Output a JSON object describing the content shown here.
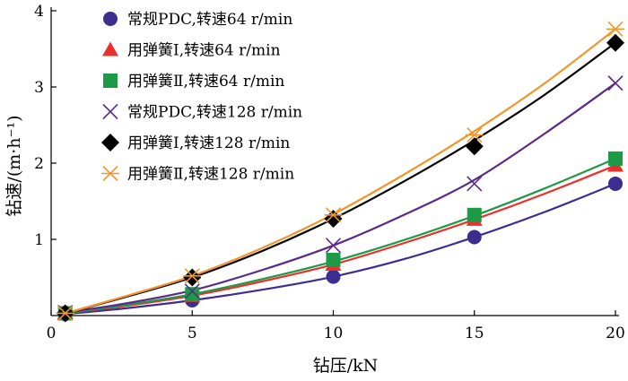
{
  "chart_data": {
    "type": "line",
    "title": "",
    "xlabel": "钻压/kN",
    "ylabel": "钻速/(m·h⁻¹)",
    "xlim": [
      0,
      20
    ],
    "ylim": [
      0,
      4
    ],
    "x_ticks": [
      "0",
      "5",
      "10",
      "15",
      "20"
    ],
    "y_ticks": [
      "1",
      "2",
      "3",
      "4"
    ],
    "grid": false,
    "legend_position": "top-left",
    "series": [
      {
        "name": "常规PDC,转速64 r/min",
        "marker": "circle",
        "color": "#3d2d8e",
        "x": [
          0.5,
          5,
          10,
          15,
          20
        ],
        "y": [
          0.02,
          0.2,
          0.51,
          1.03,
          1.73
        ],
        "fit": [
          [
            0.5,
            0.02
          ],
          [
            2.5,
            0.09
          ],
          [
            5,
            0.2
          ],
          [
            7.5,
            0.34
          ],
          [
            10,
            0.51
          ],
          [
            12.5,
            0.74
          ],
          [
            15,
            1.03
          ],
          [
            17.5,
            1.36
          ],
          [
            20,
            1.73
          ]
        ]
      },
      {
        "name": "用弹簧Ⅰ,转速64 r/min",
        "marker": "triangle",
        "color": "#e8312a",
        "x": [
          0.5,
          5,
          10,
          15,
          20
        ],
        "y": [
          0.03,
          0.26,
          0.67,
          1.26,
          1.97
        ],
        "fit": [
          [
            0.5,
            0.03
          ],
          [
            2.5,
            0.12
          ],
          [
            5,
            0.26
          ],
          [
            7.5,
            0.45
          ],
          [
            10,
            0.67
          ],
          [
            12.5,
            0.95
          ],
          [
            15,
            1.26
          ],
          [
            17.5,
            1.6
          ],
          [
            20,
            1.97
          ]
        ]
      },
      {
        "name": "用弹簧Ⅱ,转速64 r/min",
        "marker": "square",
        "color": "#1e9a47",
        "x": [
          0.5,
          5,
          10,
          15,
          20
        ],
        "y": [
          0.03,
          0.28,
          0.73,
          1.32,
          2.06
        ],
        "fit": [
          [
            0.5,
            0.03
          ],
          [
            2.5,
            0.13
          ],
          [
            5,
            0.28
          ],
          [
            7.5,
            0.48
          ],
          [
            10,
            0.71
          ],
          [
            12.5,
            0.99
          ],
          [
            15,
            1.31
          ],
          [
            17.5,
            1.67
          ],
          [
            20,
            2.06
          ]
        ]
      },
      {
        "name": "常规PDC,转速128 r/min",
        "marker": "x",
        "color": "#5b2a86",
        "x": [
          0.5,
          5,
          10,
          15,
          20
        ],
        "y": [
          0.04,
          0.32,
          0.92,
          1.73,
          3.05
        ],
        "fit": [
          [
            0.5,
            0.04
          ],
          [
            2.5,
            0.15
          ],
          [
            5,
            0.33
          ],
          [
            7.5,
            0.6
          ],
          [
            10,
            0.92
          ],
          [
            12.5,
            1.32
          ],
          [
            15,
            1.78
          ],
          [
            17.5,
            2.39
          ],
          [
            20,
            3.05
          ]
        ]
      },
      {
        "name": "用弹簧Ⅰ,转速128 r/min",
        "marker": "diamond",
        "color": "#000000",
        "x": [
          0.5,
          5,
          10,
          15,
          20
        ],
        "y": [
          0.03,
          0.5,
          1.27,
          2.22,
          3.58
        ],
        "fit": [
          [
            0.5,
            0.03
          ],
          [
            2.5,
            0.23
          ],
          [
            5,
            0.5
          ],
          [
            7.5,
            0.85
          ],
          [
            10,
            1.27
          ],
          [
            12.5,
            1.76
          ],
          [
            15,
            2.3
          ],
          [
            17.5,
            2.9
          ],
          [
            20,
            3.58
          ]
        ]
      },
      {
        "name": "用弹簧Ⅱ,转速128 r/min",
        "marker": "asterisk",
        "color": "#f0962b",
        "x": [
          0.5,
          5,
          10,
          15,
          20
        ],
        "y": [
          0.03,
          0.52,
          1.32,
          2.37,
          3.76
        ],
        "fit": [
          [
            0.5,
            0.03
          ],
          [
            2.5,
            0.24
          ],
          [
            5,
            0.52
          ],
          [
            7.5,
            0.89
          ],
          [
            10,
            1.33
          ],
          [
            12.5,
            1.85
          ],
          [
            15,
            2.42
          ],
          [
            17.5,
            3.05
          ],
          [
            20,
            3.76
          ]
        ]
      }
    ]
  }
}
